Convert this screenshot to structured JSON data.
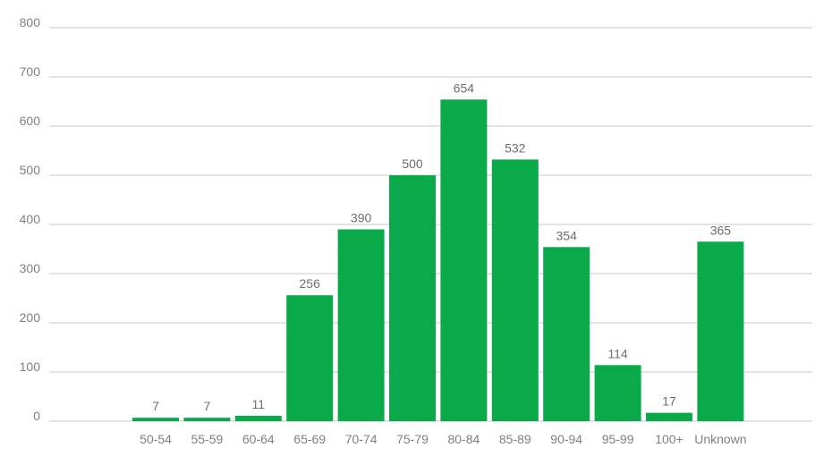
{
  "chart_data": {
    "type": "bar",
    "title": "",
    "xlabel": "",
    "ylabel": "",
    "ylim": [
      0,
      800
    ],
    "yticks": [
      0,
      100,
      200,
      300,
      400,
      500,
      600,
      700,
      800
    ],
    "grid": true,
    "legend": "none",
    "categories": [
      "50-54",
      "55-59",
      "60-64",
      "65-69",
      "70-74",
      "75-79",
      "80-84",
      "85-89",
      "90-94",
      "95-99",
      "100+",
      "Unknown"
    ],
    "values": [
      7,
      7,
      11,
      256,
      390,
      500,
      654,
      532,
      354,
      114,
      17,
      365
    ],
    "bar_color": "#0aaa4b",
    "grid_color": "#c8c8c8",
    "text_color": "#808080"
  }
}
